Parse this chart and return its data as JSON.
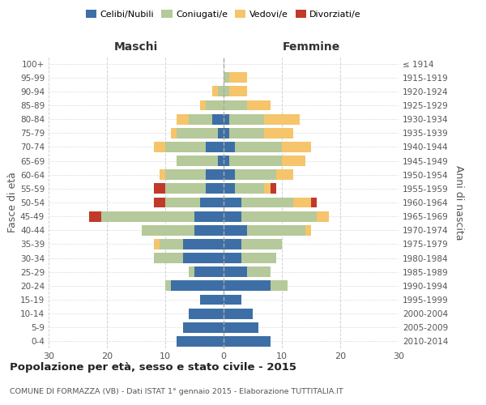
{
  "age_groups": [
    "0-4",
    "5-9",
    "10-14",
    "15-19",
    "20-24",
    "25-29",
    "30-34",
    "35-39",
    "40-44",
    "45-49",
    "50-54",
    "55-59",
    "60-64",
    "65-69",
    "70-74",
    "75-79",
    "80-84",
    "85-89",
    "90-94",
    "95-99",
    "100+"
  ],
  "birth_years": [
    "2010-2014",
    "2005-2009",
    "2000-2004",
    "1995-1999",
    "1990-1994",
    "1985-1989",
    "1980-1984",
    "1975-1979",
    "1970-1974",
    "1965-1969",
    "1960-1964",
    "1955-1959",
    "1950-1954",
    "1945-1949",
    "1940-1944",
    "1935-1939",
    "1930-1934",
    "1925-1929",
    "1920-1924",
    "1915-1919",
    "≤ 1914"
  ],
  "male": {
    "celibe": [
      8,
      7,
      6,
      4,
      9,
      5,
      7,
      7,
      5,
      5,
      4,
      3,
      3,
      1,
      3,
      1,
      2,
      0,
      0,
      0,
      0
    ],
    "coniugato": [
      0,
      0,
      0,
      0,
      1,
      1,
      5,
      4,
      9,
      16,
      6,
      7,
      7,
      7,
      7,
      7,
      4,
      3,
      1,
      0,
      0
    ],
    "vedovo": [
      0,
      0,
      0,
      0,
      0,
      0,
      0,
      1,
      0,
      0,
      0,
      0,
      1,
      0,
      2,
      1,
      2,
      1,
      1,
      0,
      0
    ],
    "divorziato": [
      0,
      0,
      0,
      0,
      0,
      0,
      0,
      0,
      0,
      2,
      2,
      2,
      0,
      0,
      0,
      0,
      0,
      0,
      0,
      0,
      0
    ]
  },
  "female": {
    "nubile": [
      8,
      6,
      5,
      3,
      8,
      4,
      3,
      3,
      4,
      3,
      3,
      2,
      2,
      1,
      2,
      1,
      1,
      0,
      0,
      0,
      0
    ],
    "coniugata": [
      0,
      0,
      0,
      0,
      3,
      4,
      6,
      7,
      10,
      13,
      9,
      5,
      7,
      9,
      8,
      6,
      6,
      4,
      1,
      1,
      0
    ],
    "vedova": [
      0,
      0,
      0,
      0,
      0,
      0,
      0,
      0,
      1,
      2,
      3,
      1,
      3,
      4,
      5,
      5,
      6,
      4,
      3,
      3,
      0
    ],
    "divorziata": [
      0,
      0,
      0,
      0,
      0,
      0,
      0,
      0,
      0,
      0,
      1,
      1,
      0,
      0,
      0,
      0,
      0,
      0,
      0,
      0,
      0
    ]
  },
  "colors": {
    "celibe": "#3d6fa6",
    "coniugato": "#b5c99a",
    "vedovo": "#f5c46b",
    "divorziato": "#c0392b"
  },
  "xlim": 30,
  "title": "Popolazione per età, sesso e stato civile - 2015",
  "subtitle": "COMUNE DI FORMAZZA (VB) - Dati ISTAT 1° gennaio 2015 - Elaborazione TUTTITALIA.IT",
  "ylabel_left": "Fasce di età",
  "ylabel_right": "Anni di nascita",
  "xlabel_left": "Maschi",
  "xlabel_right": "Femmine",
  "grid_color": "#cccccc"
}
